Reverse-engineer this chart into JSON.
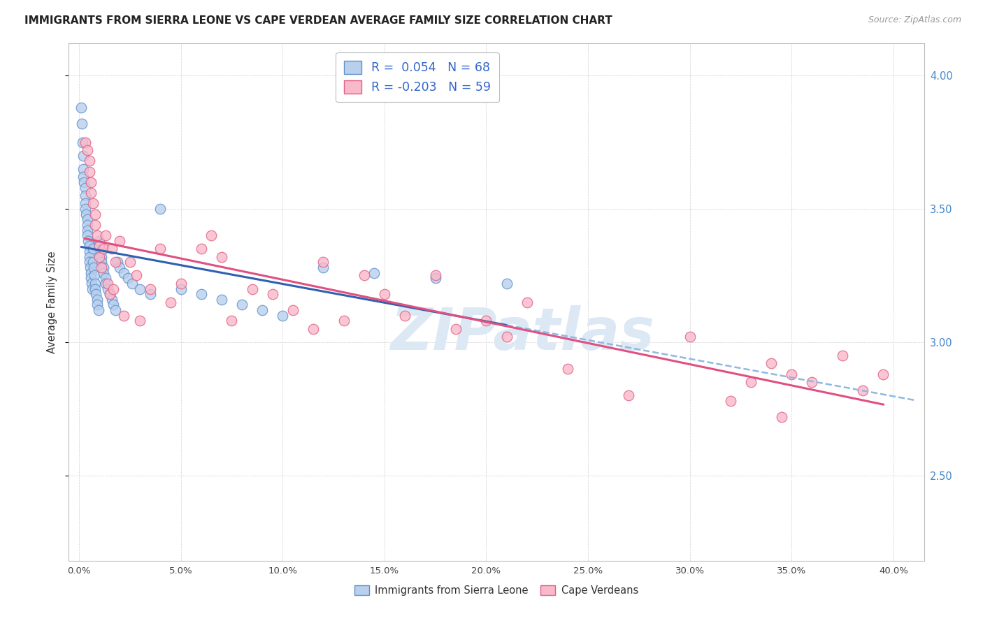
{
  "title": "IMMIGRANTS FROM SIERRA LEONE VS CAPE VERDEAN AVERAGE FAMILY SIZE CORRELATION CHART",
  "source": "Source: ZipAtlas.com",
  "ylabel": "Average Family Size",
  "ytick_labels": [
    "2.50",
    "3.00",
    "3.50",
    "4.00"
  ],
  "ytick_vals": [
    2.5,
    3.0,
    3.5,
    4.0
  ],
  "xtick_vals": [
    0.0,
    0.05,
    0.1,
    0.15,
    0.2,
    0.25,
    0.3,
    0.35,
    0.4
  ],
  "xtick_labels": [
    "0.0%",
    "5.0%",
    "10.0%",
    "15.0%",
    "20.0%",
    "25.0%",
    "30.0%",
    "35.0%",
    "40.0%"
  ],
  "xlim": [
    -0.005,
    0.415
  ],
  "ylim": [
    2.18,
    4.12
  ],
  "legend1_label": "R =  0.054   N = 68",
  "legend2_label": "R = -0.203   N = 59",
  "scatter1_facecolor": "#b8d0ee",
  "scatter2_facecolor": "#f9b8cb",
  "scatter1_edgecolor": "#6090cc",
  "scatter2_edgecolor": "#e06080",
  "trendline1_solid_color": "#3060b0",
  "trendline1_dash_color": "#90b8e0",
  "trendline2_color": "#e05080",
  "watermark": "ZIPatlas",
  "watermark_color": "#dde8f5",
  "background_color": "#ffffff",
  "grid_color": "#cccccc",
  "title_color": "#222222",
  "right_tick_color": "#4488cc",
  "legend_text_color": "#3366cc",
  "bottom_legend_color": "#333333",
  "sl_x": [
    0.0012,
    0.0015,
    0.0018,
    0.002,
    0.002,
    0.0022,
    0.0025,
    0.003,
    0.003,
    0.003,
    0.0032,
    0.0035,
    0.004,
    0.004,
    0.004,
    0.0042,
    0.0045,
    0.005,
    0.005,
    0.005,
    0.0052,
    0.0055,
    0.006,
    0.006,
    0.0062,
    0.0065,
    0.007,
    0.007,
    0.0072,
    0.0075,
    0.008,
    0.008,
    0.0082,
    0.009,
    0.009,
    0.0095,
    0.01,
    0.01,
    0.0105,
    0.011,
    0.011,
    0.012,
    0.012,
    0.013,
    0.013,
    0.014,
    0.015,
    0.016,
    0.017,
    0.018,
    0.019,
    0.02,
    0.022,
    0.024,
    0.026,
    0.03,
    0.035,
    0.04,
    0.05,
    0.06,
    0.07,
    0.08,
    0.09,
    0.1,
    0.12,
    0.145,
    0.175,
    0.21
  ],
  "sl_y": [
    3.88,
    3.82,
    3.75,
    3.7,
    3.65,
    3.62,
    3.6,
    3.58,
    3.55,
    3.52,
    3.5,
    3.48,
    3.46,
    3.44,
    3.42,
    3.4,
    3.38,
    3.36,
    3.34,
    3.32,
    3.3,
    3.28,
    3.26,
    3.24,
    3.22,
    3.2,
    3.35,
    3.3,
    3.28,
    3.25,
    3.22,
    3.2,
    3.18,
    3.16,
    3.14,
    3.12,
    3.38,
    3.36,
    3.34,
    3.32,
    3.3,
    3.28,
    3.26,
    3.24,
    3.22,
    3.2,
    3.18,
    3.16,
    3.14,
    3.12,
    3.3,
    3.28,
    3.26,
    3.24,
    3.22,
    3.2,
    3.18,
    3.5,
    3.2,
    3.18,
    3.16,
    3.14,
    3.12,
    3.1,
    3.28,
    3.26,
    3.24,
    3.22
  ],
  "cv_x": [
    0.003,
    0.004,
    0.005,
    0.005,
    0.006,
    0.006,
    0.007,
    0.008,
    0.008,
    0.009,
    0.01,
    0.01,
    0.011,
    0.012,
    0.013,
    0.014,
    0.015,
    0.016,
    0.017,
    0.018,
    0.02,
    0.022,
    0.025,
    0.028,
    0.03,
    0.035,
    0.04,
    0.045,
    0.05,
    0.06,
    0.065,
    0.07,
    0.075,
    0.085,
    0.095,
    0.105,
    0.115,
    0.12,
    0.13,
    0.14,
    0.15,
    0.16,
    0.175,
    0.185,
    0.2,
    0.21,
    0.22,
    0.24,
    0.27,
    0.3,
    0.32,
    0.33,
    0.34,
    0.345,
    0.35,
    0.36,
    0.375,
    0.385,
    0.395
  ],
  "cv_y": [
    3.75,
    3.72,
    3.68,
    3.64,
    3.6,
    3.56,
    3.52,
    3.48,
    3.44,
    3.4,
    3.36,
    3.32,
    3.28,
    3.35,
    3.4,
    3.22,
    3.18,
    3.35,
    3.2,
    3.3,
    3.38,
    3.1,
    3.3,
    3.25,
    3.08,
    3.2,
    3.35,
    3.15,
    3.22,
    3.35,
    3.4,
    3.32,
    3.08,
    3.2,
    3.18,
    3.12,
    3.05,
    3.3,
    3.08,
    3.25,
    3.18,
    3.1,
    3.25,
    3.05,
    3.08,
    3.02,
    3.15,
    2.9,
    2.8,
    3.02,
    2.78,
    2.85,
    2.92,
    2.72,
    2.88,
    2.85,
    2.95,
    2.82,
    2.88
  ]
}
